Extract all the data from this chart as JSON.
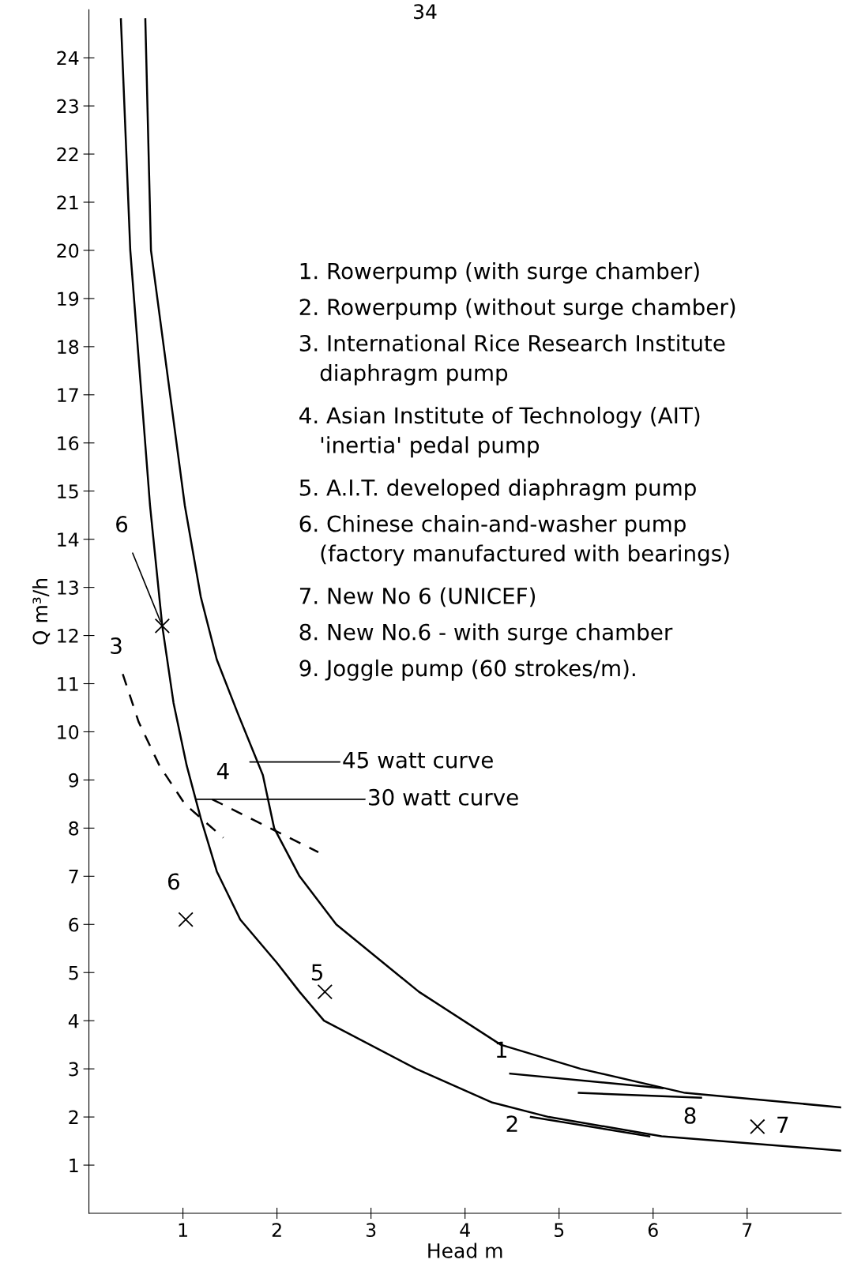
{
  "chart_data": {
    "type": "line",
    "xlabel": "Head m",
    "ylabel": "Q m³/h",
    "xlim": [
      0,
      8
    ],
    "ylim": [
      0,
      25
    ],
    "xticks": [
      1,
      2,
      3,
      4,
      5,
      6,
      7
    ],
    "yticks": [
      1,
      2,
      3,
      4,
      5,
      6,
      7,
      8,
      9,
      10,
      11,
      12,
      13,
      14,
      15,
      16,
      17,
      18,
      19,
      20,
      21,
      22,
      23,
      24
    ],
    "grid": false,
    "legend": false,
    "series": [
      {
        "color": "#000000",
        "line_style": "solid",
        "marker": "none",
        "x": [
          0.34,
          0.44,
          0.65,
          0.78,
          0.9,
          1.04,
          1.19,
          1.36,
          1.61,
          2.0,
          2.24,
          2.5,
          3.48,
          4.29,
          4.89,
          6.09,
          8.0
        ],
        "values": [
          24.8,
          20,
          14.7,
          12.2,
          10.6,
          9.3,
          8.2,
          7.1,
          6.1,
          5.2,
          4.6,
          4,
          3,
          2.3,
          2,
          1.6,
          1.3
        ]
      },
      {
        "color": "#000000",
        "line_style": "solid",
        "marker": "none",
        "x": [
          0.6,
          0.66,
          1.02,
          1.19,
          1.36,
          1.58,
          1.85,
          1.97,
          2.24,
          2.63,
          3.51,
          4.38,
          5.23,
          6.34,
          8.0
        ],
        "values": [
          24.8,
          20,
          14.7,
          12.8,
          11.5,
          10.4,
          9.1,
          8.0,
          7.0,
          6.0,
          4.6,
          3.5,
          3,
          2.5,
          2.2
        ]
      },
      {
        "color": "#000000",
        "line_style": "dashed",
        "marker": "none",
        "x": [
          0.36,
          0.53,
          0.75,
          1.02,
          1.43
        ],
        "values": [
          11.2,
          10.2,
          9.3,
          8.5,
          7.8
        ]
      },
      {
        "color": "#000000",
        "line_style": "dashed",
        "marker": "none",
        "x": [
          1.31,
          2.44
        ],
        "values": [
          8.6,
          7.5
        ]
      },
      {
        "color": "#000000",
        "line_style": "solid",
        "marker": "none",
        "x": [
          4.48,
          6.1
        ],
        "values": [
          2.9,
          2.6
        ]
      },
      {
        "color": "#000000",
        "line_style": "solid",
        "marker": "none",
        "x": [
          5.21,
          6.51
        ],
        "values": [
          2.5,
          2.4
        ]
      },
      {
        "color": "#000000",
        "line_style": "solid",
        "marker": "none",
        "x": [
          4.7,
          5.96
        ],
        "values": [
          2.0,
          1.6
        ]
      },
      {
        "type": "scatter",
        "color": "#000000",
        "marker": "cross",
        "x": [
          0.78
        ],
        "values": [
          12.2
        ]
      },
      {
        "type": "scatter",
        "color": "#000000",
        "marker": "cross",
        "x": [
          1.03
        ],
        "values": [
          6.1
        ]
      },
      {
        "type": "scatter",
        "color": "#000000",
        "marker": "cross",
        "x": [
          2.51
        ],
        "values": [
          4.6
        ]
      },
      {
        "type": "scatter",
        "color": "#000000",
        "marker": "cross",
        "x": [
          7.11
        ],
        "values": [
          1.8
        ]
      }
    ],
    "annotations": [
      {
        "text": "6",
        "x": 0.78,
        "y": 12.2
      },
      {
        "text": "3",
        "x": 0.36,
        "y": 11.2
      },
      {
        "text": "4",
        "x": 1.31,
        "y": 8.6
      },
      {
        "text": "6",
        "x": 1.03,
        "y": 6.1
      },
      {
        "text": "5",
        "x": 2.51,
        "y": 4.6
      },
      {
        "text": "1",
        "x": 4.48,
        "y": 2.9
      },
      {
        "text": "8",
        "x": 6.51,
        "y": 2.4
      },
      {
        "text": "2",
        "x": 4.7,
        "y": 2.0
      },
      {
        "text": "7",
        "x": 7.11,
        "y": 1.8
      },
      {
        "text": "30 watt curve",
        "x": 1.14,
        "y": 8.6
      },
      "45 watt curve",
      "1. Rowerpump (with surge chamber)",
      "2. Rowerpump (without surge chamber)",
      "3. International Rice Research Institute\n   diaphragm pump",
      "4. Asian Institute of Technology (AIT)\n   'inertia' pedal pump",
      "5. A.I.T. developed diaphragm pump",
      "6. Chinese chain-and-washer pump\n   (factory manufactured with bearings)",
      "7. New No 6 (UNICEF)",
      "8. New No.6 - with surge chamber",
      "9. Joggle pump (60 strokes/m).",
      "34"
    ]
  }
}
